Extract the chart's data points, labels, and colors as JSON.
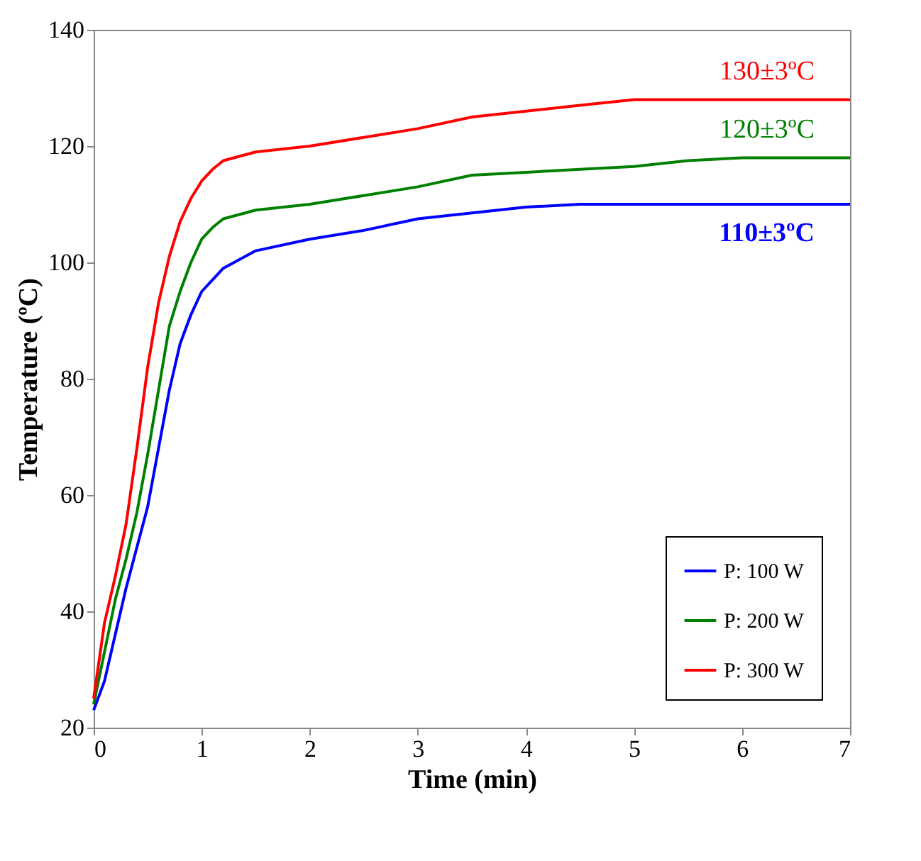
{
  "chart_data": {
    "type": "line",
    "xlabel": "Time (min)",
    "ylabel": "Temperature (ºC)",
    "xlim": [
      0,
      7
    ],
    "ylim": [
      20,
      140
    ],
    "xticks": [
      0,
      1,
      2,
      3,
      4,
      5,
      6,
      7
    ],
    "yticks": [
      20,
      40,
      60,
      80,
      100,
      120,
      140
    ],
    "grid": false,
    "legend": "bottom right",
    "marker": "none",
    "line_style": "solid",
    "x": [
      0,
      0.1,
      0.2,
      0.3,
      0.4,
      0.5,
      0.6,
      0.7,
      0.8,
      0.9,
      1.0,
      1.1,
      1.2,
      1.5,
      2,
      2.5,
      3,
      3.5,
      4,
      4.5,
      5,
      5.5,
      6,
      7
    ],
    "series": [
      {
        "name": "P: 100 W",
        "color": "#0000ff",
        "values": [
          23,
          28,
          36,
          44,
          51,
          58,
          68,
          78,
          86,
          91,
          95,
          97,
          99,
          102,
          104,
          105.5,
          107.5,
          108.5,
          109.5,
          110,
          110,
          110,
          110,
          110
        ]
      },
      {
        "name": "P: 200 W",
        "color": "#008000",
        "values": [
          24,
          33,
          42,
          49,
          57,
          67,
          78,
          89,
          95,
          100,
          104,
          106,
          107.5,
          109,
          110,
          111.5,
          113,
          115,
          115.5,
          116,
          116.5,
          117.5,
          118,
          118
        ]
      },
      {
        "name": "P: 300 W",
        "color": "#ff0000",
        "values": [
          25,
          38,
          46,
          55,
          68,
          82,
          93,
          101,
          107,
          111,
          114,
          116,
          117.5,
          119,
          120,
          121.5,
          123,
          125,
          126,
          127,
          128,
          128,
          128,
          128
        ]
      }
    ],
    "annotations": [
      "110±3ºC",
      "120±3ºC",
      "130±3ºC"
    ]
  }
}
